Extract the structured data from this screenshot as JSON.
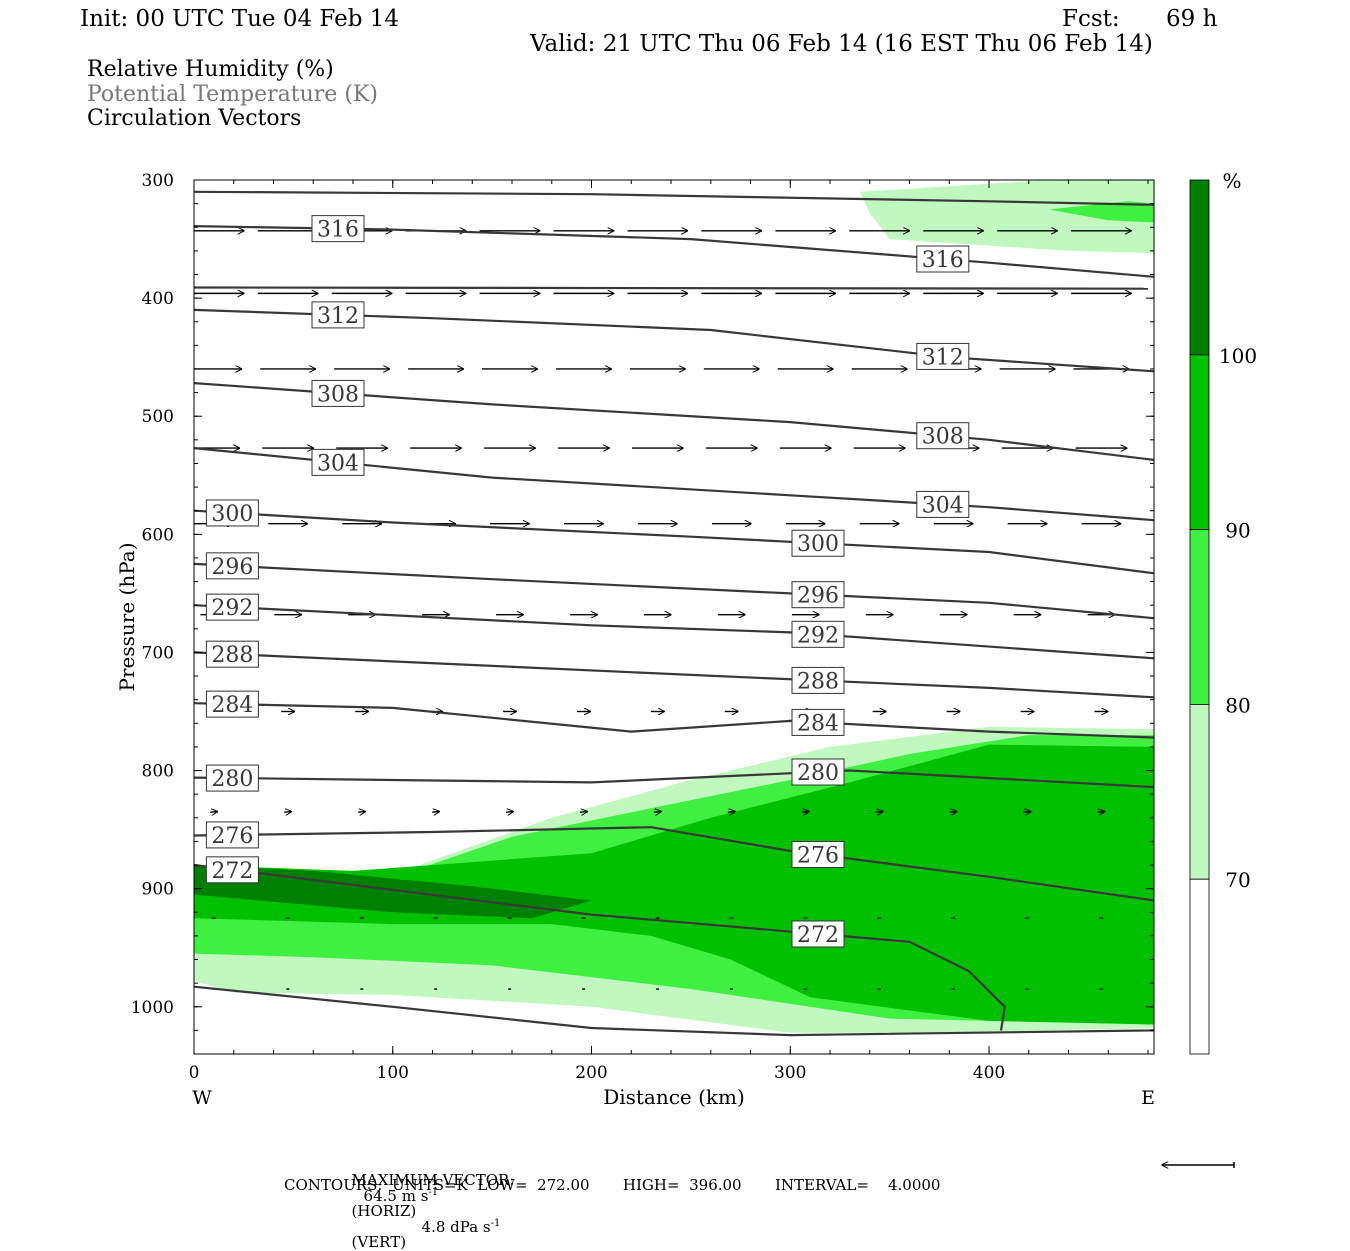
{
  "header": {
    "init": "Init: 00 UTC Tue 04 Feb 14",
    "fcst_label": "Fcst:",
    "fcst_value": "69 h",
    "valid": "Valid: 21 UTC Thu 06 Feb 14 (16 EST Thu 06 Feb 14)"
  },
  "fields": [
    "Relative Humidity (%)",
    "Potential Temperature (K)",
    "Circulation Vectors"
  ],
  "footer": {
    "max_vector_label": "MAXIMUM VECTOR:",
    "max_vector_horiz": "64.5 m s",
    "horiz_tag": "(HORIZ)",
    "max_vector_vert": "4.8 dPa s",
    "vert_tag": "(VERT)",
    "exp": "-1",
    "contours": "CONTOURS:  UNITS=K  LOW=  272.00       HIGH=  396.00       INTERVAL=    4.0000"
  },
  "colors": {
    "rh_70_80": "#c0f8c0",
    "rh_80_90": "#40f040",
    "rh_90_100": "#00c000",
    "rh_100": "#008000",
    "theta": "#383838",
    "title_grey": "#777777"
  },
  "chart_data": {
    "type": "cross-section",
    "xlabel": "Distance (km)",
    "ylabel": "Pressure (hPa)",
    "xlim": [
      0,
      483
    ],
    "ylim": [
      1040,
      300
    ],
    "xticks": [
      "0",
      "100",
      "200",
      "300",
      "400"
    ],
    "yticks": [
      "300",
      "400",
      "500",
      "600",
      "700",
      "800",
      "900",
      "1000"
    ],
    "x_end_left": "W",
    "x_end_right": "E",
    "colorbar": {
      "unit": "%",
      "levels": [
        "70",
        "80",
        "90",
        "100"
      ]
    },
    "theta_contours": [
      {
        "level": null,
        "points": [
          [
            0,
            310
          ],
          [
            200,
            312
          ],
          [
            400,
            318
          ],
          [
            483,
            321
          ]
        ]
      },
      {
        "level": "316",
        "points": [
          [
            0,
            339
          ],
          [
            100,
            342
          ],
          [
            250,
            350
          ],
          [
            400,
            370
          ],
          [
            483,
            382
          ]
        ]
      },
      {
        "level": null,
        "points": [
          [
            0,
            391
          ],
          [
            480,
            392
          ]
        ]
      },
      {
        "level": "312",
        "points": [
          [
            0,
            410
          ],
          [
            120,
            417
          ],
          [
            260,
            427
          ],
          [
            380,
            450
          ],
          [
            483,
            462
          ]
        ]
      },
      {
        "level": "308",
        "points": [
          [
            0,
            472
          ],
          [
            150,
            490
          ],
          [
            300,
            505
          ],
          [
            400,
            520
          ],
          [
            483,
            537
          ]
        ]
      },
      {
        "level": "304",
        "points": [
          [
            0,
            527
          ],
          [
            150,
            552
          ],
          [
            300,
            567
          ],
          [
            400,
            577
          ],
          [
            483,
            588
          ]
        ]
      },
      {
        "level": "300",
        "points": [
          [
            0,
            580
          ],
          [
            100,
            590
          ],
          [
            250,
            602
          ],
          [
            400,
            615
          ],
          [
            483,
            633
          ]
        ]
      },
      {
        "level": "296",
        "points": [
          [
            0,
            625
          ],
          [
            150,
            638
          ],
          [
            300,
            650
          ],
          [
            400,
            658
          ],
          [
            483,
            671
          ]
        ]
      },
      {
        "level": "292",
        "points": [
          [
            0,
            660
          ],
          [
            200,
            677
          ],
          [
            300,
            683
          ],
          [
            483,
            705
          ]
        ]
      },
      {
        "level": "288",
        "points": [
          [
            0,
            700
          ],
          [
            250,
            719
          ],
          [
            400,
            730
          ],
          [
            483,
            738
          ]
        ]
      },
      {
        "level": "284",
        "points": [
          [
            0,
            743
          ],
          [
            100,
            747
          ],
          [
            220,
            767
          ],
          [
            300,
            758
          ],
          [
            400,
            767
          ],
          [
            483,
            772
          ]
        ]
      },
      {
        "level": "280",
        "points": [
          [
            0,
            806
          ],
          [
            200,
            810
          ],
          [
            330,
            800
          ],
          [
            483,
            814
          ]
        ]
      },
      {
        "level": "276",
        "points": [
          [
            0,
            855
          ],
          [
            120,
            852
          ],
          [
            230,
            848
          ],
          [
            300,
            868
          ],
          [
            400,
            890
          ],
          [
            483,
            910
          ]
        ]
      },
      {
        "level": "272",
        "points": [
          [
            0,
            880
          ],
          [
            200,
            922
          ],
          [
            360,
            945
          ],
          [
            390,
            970
          ],
          [
            408,
            1000
          ],
          [
            406,
            1020
          ]
        ]
      },
      {
        "level": null,
        "points": [
          [
            0,
            983
          ],
          [
            100,
            1000
          ],
          [
            200,
            1018
          ],
          [
            300,
            1024
          ],
          [
            483,
            1020
          ]
        ]
      }
    ],
    "rh_shading": [
      {
        "band": "70-80",
        "points": [
          [
            340,
            328
          ],
          [
            335,
            310
          ],
          [
            430,
            300
          ],
          [
            483,
            300
          ],
          [
            483,
            362
          ],
          [
            440,
            360
          ],
          [
            350,
            350
          ]
        ]
      },
      {
        "band": "80-90",
        "points": [
          [
            430,
            325
          ],
          [
            470,
            318
          ],
          [
            483,
            320
          ],
          [
            483,
            336
          ],
          [
            460,
            334
          ]
        ]
      },
      {
        "band": "70-80",
        "points": [
          [
            0,
            888
          ],
          [
            100,
            888
          ],
          [
            180,
            840
          ],
          [
            250,
            808
          ],
          [
            320,
            780
          ],
          [
            400,
            763
          ],
          [
            483,
            765
          ],
          [
            483,
            1018
          ],
          [
            380,
            1022
          ],
          [
            300,
            1022
          ],
          [
            200,
            1000
          ],
          [
            100,
            990
          ],
          [
            20,
            988
          ],
          [
            0,
            978
          ]
        ]
      },
      {
        "band": "80-90",
        "points": [
          [
            0,
            890
          ],
          [
            110,
            885
          ],
          [
            160,
            856
          ],
          [
            230,
            832
          ],
          [
            300,
            808
          ],
          [
            360,
            786
          ],
          [
            420,
            770
          ],
          [
            483,
            770
          ],
          [
            483,
            1015
          ],
          [
            350,
            1010
          ],
          [
            250,
            985
          ],
          [
            150,
            965
          ],
          [
            60,
            958
          ],
          [
            0,
            955
          ]
        ]
      },
      {
        "band": "90-100",
        "points": [
          [
            0,
            880
          ],
          [
            80,
            885
          ],
          [
            200,
            870
          ],
          [
            260,
            840
          ],
          [
            330,
            810
          ],
          [
            400,
            778
          ],
          [
            483,
            780
          ],
          [
            483,
            1015
          ],
          [
            400,
            1012
          ],
          [
            310,
            992
          ],
          [
            270,
            960
          ],
          [
            230,
            940
          ],
          [
            180,
            930
          ],
          [
            100,
            930
          ],
          [
            0,
            925
          ]
        ]
      },
      {
        "band": ">100",
        "points": [
          [
            0,
            880
          ],
          [
            60,
            885
          ],
          [
            140,
            898
          ],
          [
            200,
            910
          ],
          [
            170,
            925
          ],
          [
            100,
            920
          ],
          [
            0,
            905
          ]
        ]
      }
    ],
    "vector_rows": [
      {
        "pressure": 343,
        "length": 1.0,
        "tilt": 0.0
      },
      {
        "pressure": 396,
        "length": 1.0,
        "tilt": 0.0
      },
      {
        "pressure": 460,
        "length": 0.92,
        "tilt": 0.0
      },
      {
        "pressure": 527,
        "length": 0.85,
        "tilt": 0.0
      },
      {
        "pressure": 591,
        "length": 0.65,
        "tilt": 0.0
      },
      {
        "pressure": 668,
        "length": 0.45,
        "tilt": 0.0
      },
      {
        "pressure": 750,
        "length": 0.22,
        "tilt": 0.0
      },
      {
        "pressure": 835,
        "length": 0.12,
        "tilt": -0.1
      },
      {
        "pressure": 925,
        "length": 0.06,
        "tilt": -0.1
      },
      {
        "pressure": 985,
        "length": 0.04,
        "tilt": 0.0
      }
    ],
    "max_vector_arrow": "←"
  }
}
